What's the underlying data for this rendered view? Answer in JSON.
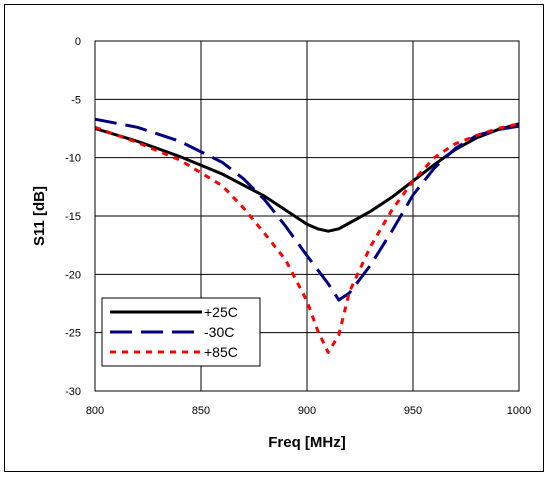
{
  "chart_data": {
    "type": "line",
    "xlabel": "Freq [MHz]",
    "ylabel": "S11 [dB]",
    "xlim": [
      800,
      1000
    ],
    "ylim": [
      -30,
      0
    ],
    "xticks": [
      800,
      850,
      900,
      950,
      1000
    ],
    "yticks": [
      0,
      -5,
      -10,
      -15,
      -20,
      -25,
      -30
    ],
    "grid": true,
    "legend_position": "bottom-left",
    "series": [
      {
        "name": "+25C",
        "color": "#000000",
        "dash": "solid",
        "x": [
          800,
          820,
          840,
          860,
          880,
          890,
          900,
          905,
          910,
          915,
          920,
          930,
          940,
          950,
          960,
          970,
          980,
          990,
          1000
        ],
        "y": [
          -7.5,
          -8.6,
          -9.9,
          -11.4,
          -13.3,
          -14.5,
          -15.7,
          -16.1,
          -16.3,
          -16.1,
          -15.6,
          -14.6,
          -13.4,
          -12.0,
          -10.6,
          -9.3,
          -8.3,
          -7.6,
          -7.1
        ]
      },
      {
        "name": "-30C",
        "color": "#000080",
        "dash": "long-dash",
        "x": [
          800,
          820,
          840,
          860,
          870,
          880,
          890,
          900,
          905,
          910,
          915,
          920,
          930,
          940,
          950,
          960,
          970,
          980,
          990,
          1000
        ],
        "y": [
          -6.7,
          -7.4,
          -8.6,
          -10.4,
          -11.8,
          -13.6,
          -15.9,
          -18.4,
          -19.6,
          -20.8,
          -22.2,
          -21.6,
          -19.2,
          -16.3,
          -13.2,
          -10.9,
          -9.2,
          -8.1,
          -7.6,
          -7.3
        ]
      },
      {
        "name": "+85C",
        "color": "#ff0000",
        "dash": "short-dash",
        "x": [
          800,
          820,
          840,
          860,
          870,
          880,
          890,
          900,
          905,
          910,
          915,
          920,
          930,
          940,
          950,
          960,
          970,
          980,
          990,
          1000
        ],
        "y": [
          -7.4,
          -8.7,
          -10.2,
          -12.4,
          -14.3,
          -16.5,
          -18.8,
          -22.3,
          -24.8,
          -26.7,
          -25.2,
          -21.5,
          -17.6,
          -14.5,
          -12.0,
          -10.0,
          -8.8,
          -8.1,
          -7.5,
          -7.1
        ]
      }
    ]
  }
}
